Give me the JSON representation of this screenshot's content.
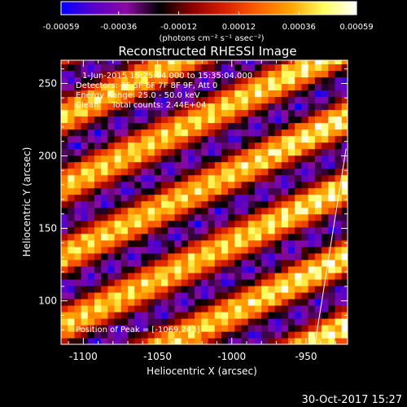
{
  "colorbar": {
    "tick_labels": [
      "-0.00059",
      "-0.00036",
      "-0.00012",
      "0.00012",
      "0.00036",
      "0.00059"
    ],
    "tick_values": [
      -0.00059,
      -0.00036,
      -0.00012,
      0.00012,
      0.00036,
      0.00059
    ],
    "range": [
      -0.00059,
      0.00059
    ],
    "units_label": "(photons cm⁻² s⁻¹ asec⁻²)",
    "colors": [
      "#0000ff",
      "#5a00c8",
      "#8a0aa0",
      "#000000",
      "#8c0000",
      "#d82000",
      "#ff6000",
      "#ffa400",
      "#ffff60",
      "#ffffff"
    ]
  },
  "annotations": {
    "time_range": "1-Jun-2015 15:25:04.000 to 15:35:04.000",
    "detectors": "Detectors: 3F 5F 6F 7F 8F 9F, Att 0",
    "energy_range": "Energy Range: 25.0 - 50.0 keV",
    "clean_counts": "Clean     Total counts: 2.44E+04",
    "peak_position": "Position of Peak = [-1069,243]"
  },
  "footer": {
    "timestamp": "30-Oct-2017 15:27"
  },
  "chart_data": {
    "type": "heatmap",
    "title": "Reconstructed RHESSI Image",
    "xlabel": "Heliocentric X (arcsec)",
    "ylabel": "Heliocentric Y (arcsec)",
    "xlim": [
      -1115,
      -922
    ],
    "ylim": [
      70,
      266
    ],
    "x_ticks": [
      -1100,
      -1050,
      -1000,
      -950
    ],
    "x_tick_labels": [
      "-1100",
      "-1050",
      "-1000",
      "-950"
    ],
    "y_ticks": [
      100,
      150,
      200,
      250
    ],
    "y_tick_labels": [
      "100",
      "150",
      "200",
      "250"
    ],
    "pattern": {
      "type": "diagonal_stripes",
      "slope": 0.5,
      "period_arcsec": 48,
      "bright_bands_at_x_-1000": [
        92,
        140,
        188,
        236
      ],
      "dark_bands_at_x_-1000": [
        116,
        164,
        212,
        260
      ],
      "blob_wavelength_arcsec": 13,
      "peak_value": 0.00059,
      "min_value": -0.00059
    },
    "limb_line": [
      [
        -944,
        70
      ],
      [
        -923,
        205
      ]
    ],
    "peak_position": [
      -1069,
      243
    ]
  }
}
